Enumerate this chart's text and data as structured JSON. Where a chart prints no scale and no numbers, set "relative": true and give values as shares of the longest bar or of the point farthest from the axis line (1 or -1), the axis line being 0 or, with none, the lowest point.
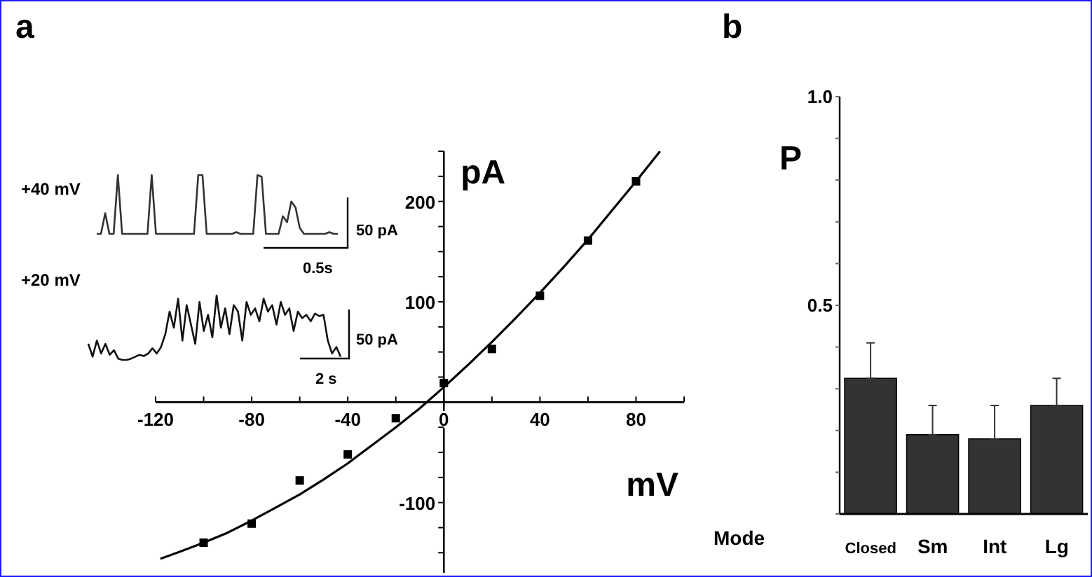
{
  "chart_data": [
    {
      "type": "scatter",
      "title": "a",
      "xlabel": "mV",
      "ylabel": "pA",
      "xlim": [
        -120,
        100
      ],
      "ylim": [
        -170,
        250
      ],
      "xticks": [
        -120,
        {
          "value": -100,
          "label": null
        },
        -80,
        {
          "value": -60,
          "label": null
        },
        -40,
        {
          "value": -20,
          "label": null
        },
        0,
        {
          "value": 20,
          "label": null
        },
        40,
        {
          "value": 60,
          "label": null
        },
        80,
        {
          "value": 100,
          "label": null
        }
      ],
      "yticks": [
        {
          "value": -150,
          "label": null
        },
        {
          "value": -125,
          "label": null
        },
        -100,
        {
          "value": -75,
          "label": null
        },
        {
          "value": -50,
          "label": null
        },
        {
          "value": -25,
          "label": null
        },
        {
          "value": 25,
          "label": null
        },
        {
          "value": 50,
          "label": null
        },
        {
          "value": 75,
          "label": null
        },
        100,
        {
          "value": 125,
          "label": null
        },
        {
          "value": 150,
          "label": null
        },
        {
          "value": 175,
          "label": null
        },
        200,
        {
          "value": 225,
          "label": null
        },
        {
          "value": 250,
          "label": null
        }
      ],
      "series": [
        {
          "type": "scatter",
          "marker": "square",
          "color": "#000000",
          "x": [
            -100,
            -80,
            -60,
            -40,
            -20,
            0,
            20,
            40,
            60,
            80
          ],
          "values": [
            -140,
            -121,
            -78,
            -52,
            -16,
            19,
            53,
            106,
            161,
            220
          ]
        },
        {
          "type": "line",
          "marker": "none",
          "color": "#000000",
          "x": [
            -118,
            -110,
            -100,
            -90,
            -80,
            -70,
            -60,
            -50,
            -40,
            -30,
            -20,
            -10,
            0,
            10,
            20,
            30,
            40,
            50,
            60,
            70,
            80,
            90
          ],
          "values": [
            -156,
            -149,
            -140,
            -130,
            -118,
            -105,
            -92,
            -77,
            -61,
            -43,
            -25,
            -6,
            15,
            37,
            60,
            84,
            109,
            135,
            162,
            191,
            220,
            250
          ]
        }
      ]
    },
    {
      "type": "line",
      "relative": true,
      "color": "#333333",
      "categories": [
        null,
        null,
        null,
        null,
        null,
        null,
        null,
        null,
        null,
        null,
        null,
        null,
        null,
        null,
        null,
        null,
        null,
        null,
        null,
        null,
        null,
        null,
        null,
        null,
        null,
        null,
        null,
        null,
        null,
        null,
        null,
        null,
        null,
        null,
        null,
        null,
        null,
        null,
        null,
        null,
        null,
        null,
        null,
        null,
        null,
        null,
        null,
        null,
        null,
        null,
        null,
        null,
        null,
        null,
        null,
        null,
        null,
        null
      ],
      "values": [
        0,
        0,
        0.35,
        0,
        0,
        1,
        0,
        0,
        0,
        0,
        0,
        0,
        0,
        1,
        0,
        0,
        0,
        0,
        0,
        0,
        0,
        0,
        0,
        0,
        1,
        1,
        0,
        0,
        0,
        0,
        0,
        0,
        0,
        0.03,
        0,
        0,
        0,
        0,
        1,
        0.97,
        0,
        0,
        0,
        0,
        0.3,
        0.2,
        0.55,
        0.45,
        0.1,
        0,
        0,
        0,
        0,
        0,
        0,
        0.03,
        0,
        0
      ],
      "annotations": [
        "+40 mV",
        "50 pA",
        "0.5s"
      ]
    },
    {
      "type": "line",
      "relative": true,
      "color": "#111111",
      "categories": [
        null,
        null,
        null,
        null,
        null,
        null,
        null,
        null,
        null,
        null,
        null,
        null,
        null,
        null,
        null,
        null,
        null,
        null,
        null,
        null,
        null,
        null,
        null,
        null,
        null,
        null,
        null,
        null,
        null,
        null,
        null,
        null,
        null,
        null,
        null,
        null,
        null,
        null,
        null,
        null,
        null,
        null,
        null,
        null,
        null,
        null,
        null,
        null,
        null,
        null,
        null,
        null,
        null,
        null,
        null,
        null,
        null,
        null,
        null,
        null
      ],
      "values": [
        0.25,
        0.05,
        0.3,
        0.1,
        0.25,
        0.08,
        0.15,
        0.02,
        0,
        0,
        0.02,
        0.05,
        0.08,
        0.06,
        0.1,
        0.18,
        0.1,
        0.2,
        0.4,
        0.75,
        0.5,
        0.95,
        0.3,
        0.85,
        0.55,
        0.25,
        0.9,
        0.45,
        0.7,
        0.35,
        1,
        0.5,
        0.8,
        0.4,
        0.85,
        0.75,
        0.3,
        0.9,
        0.7,
        0.8,
        0.6,
        0.95,
        0.75,
        0.85,
        0.55,
        0.9,
        0.7,
        0.8,
        0.45,
        0.75,
        0.65,
        0.7,
        0.6,
        0.72,
        0.68,
        0.7,
        0.3,
        0.1,
        0.2,
        0.05
      ],
      "annotations": [
        "+20 mV",
        "50 pA",
        "2 s"
      ]
    },
    {
      "type": "bar",
      "title": "b",
      "xlabel": "Mode",
      "ylabel": "P",
      "categories": [
        "Closed",
        "Sm",
        "Int",
        "Lg"
      ],
      "values": [
        0.325,
        0.19,
        0.18,
        0.26
      ],
      "errors": [
        [
          0.325,
          0.41
        ],
        [
          0.19,
          0.26
        ],
        [
          0.18,
          0.26
        ],
        [
          0.26,
          0.325
        ]
      ],
      "color": "#333333",
      "ylim": [
        0,
        1
      ],
      "yticks": [
        {
          "value": 0,
          "label": null
        },
        {
          "value": 0.1,
          "label": null
        },
        {
          "value": 0.2,
          "label": null
        },
        {
          "value": 0.3,
          "label": null
        },
        {
          "value": 0.4,
          "label": null
        },
        0.5,
        {
          "value": 0.6,
          "label": null
        },
        {
          "value": 0.7,
          "label": null
        },
        {
          "value": 0.8,
          "label": null
        },
        {
          "value": 0.9,
          "label": null
        },
        {
          "value": 1,
          "label": "1.0"
        }
      ],
      "grid": false
    }
  ]
}
